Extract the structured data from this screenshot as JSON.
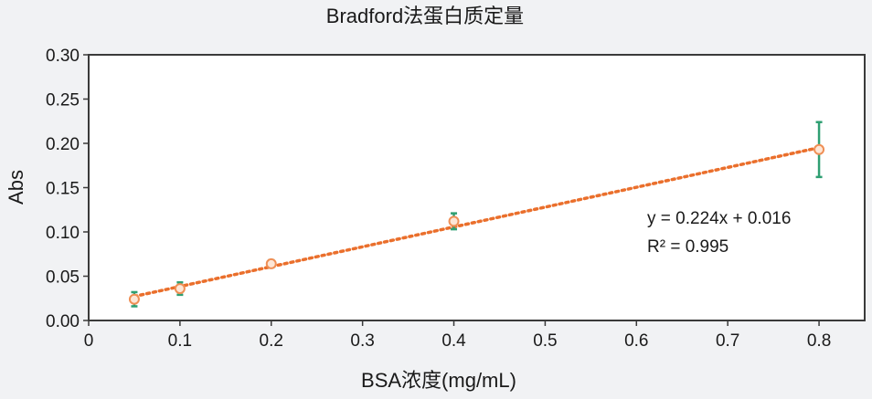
{
  "chart_data": {
    "type": "scatter",
    "title": "Bradford法蛋白质定量",
    "xlabel": "BSA浓度(mg/mL)",
    "ylabel": "Abs",
    "xlim": [
      0,
      0.85
    ],
    "ylim": [
      0,
      0.3
    ],
    "x_ticks": [
      0,
      0.1,
      0.2,
      0.3,
      0.4,
      0.5,
      0.6,
      0.7,
      0.8
    ],
    "x_tick_labels": [
      "0",
      "0.1",
      "0.2",
      "0.3",
      "0.4",
      "0.5",
      "0.6",
      "0.7",
      "0.8"
    ],
    "y_ticks": [
      0,
      0.05,
      0.1,
      0.15,
      0.2,
      0.25,
      0.3
    ],
    "y_tick_labels": [
      "0.00",
      "0.05",
      "0.10",
      "0.15",
      "0.20",
      "0.25",
      "0.30"
    ],
    "grid": false,
    "series": [
      {
        "x": [
          0.05,
          0.1,
          0.2,
          0.4,
          0.8
        ],
        "y": [
          0.024,
          0.036,
          0.064,
          0.112,
          0.193
        ],
        "error": [
          0.008,
          0.007,
          0.004,
          0.009,
          0.031
        ]
      }
    ],
    "trendline": {
      "slope": 0.224,
      "intercept": 0.016,
      "x_range": [
        0.05,
        0.8
      ]
    },
    "annotations": {
      "equation": "y   = 0.224x + 0.016",
      "r_squared": "R² = 0.995"
    },
    "colors": {
      "marker": "#ef8f55",
      "trendline": "#ea6f2c",
      "error_bar": "#2f9f72",
      "axis": "#3a3a3a",
      "plot_background": "#ffffff"
    }
  }
}
